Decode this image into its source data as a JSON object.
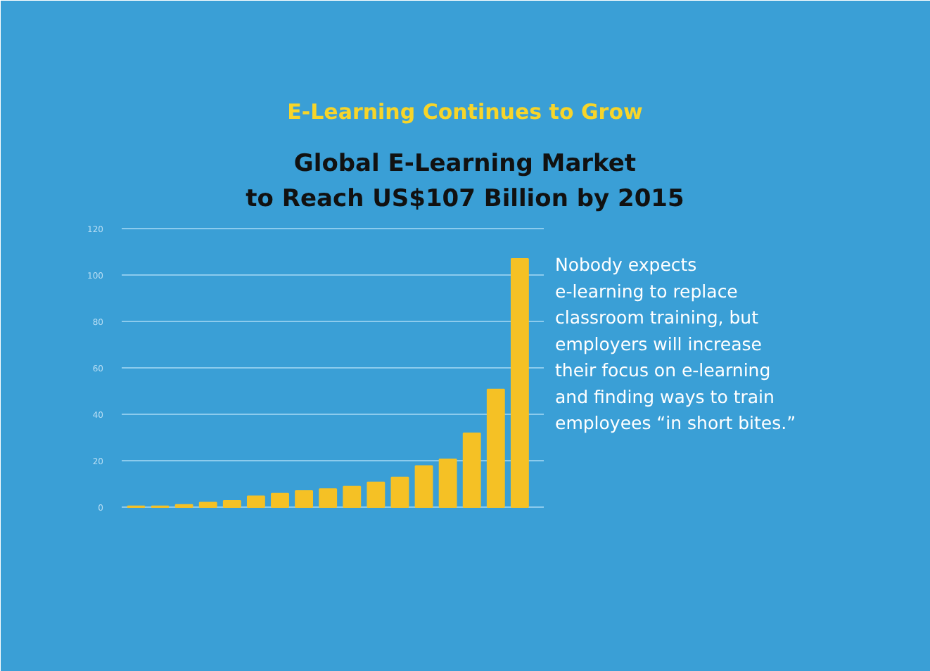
{
  "chart_data": {
    "type": "bar",
    "title": "E-Learning Continues to Grow",
    "subtitle": "Global E-Learning Market\nto Reach US$107 Billion by 2015",
    "color": "#f5c125",
    "categories": [
      null,
      null,
      null,
      null,
      null,
      null,
      null,
      null,
      null,
      null,
      null,
      null,
      null,
      null,
      null,
      null,
      null
    ],
    "values": [
      0.4,
      0.4,
      1,
      2,
      2.7,
      4.7,
      5.8,
      7,
      7.8,
      8.9,
      10.7,
      12.8,
      17.7,
      20.6,
      31.8,
      50.7,
      107
    ],
    "ylim": [
      0,
      120
    ],
    "yticks": [
      0,
      20,
      40,
      60,
      80,
      100,
      120
    ],
    "grid": "y",
    "annotations": [
      "Nobody expects\ne-learning to replace\nclassroom training, but\nemployers will increase\ntheir focus on e-learning\nand finding ways to train\nemployees “in short bites.”"
    ]
  }
}
